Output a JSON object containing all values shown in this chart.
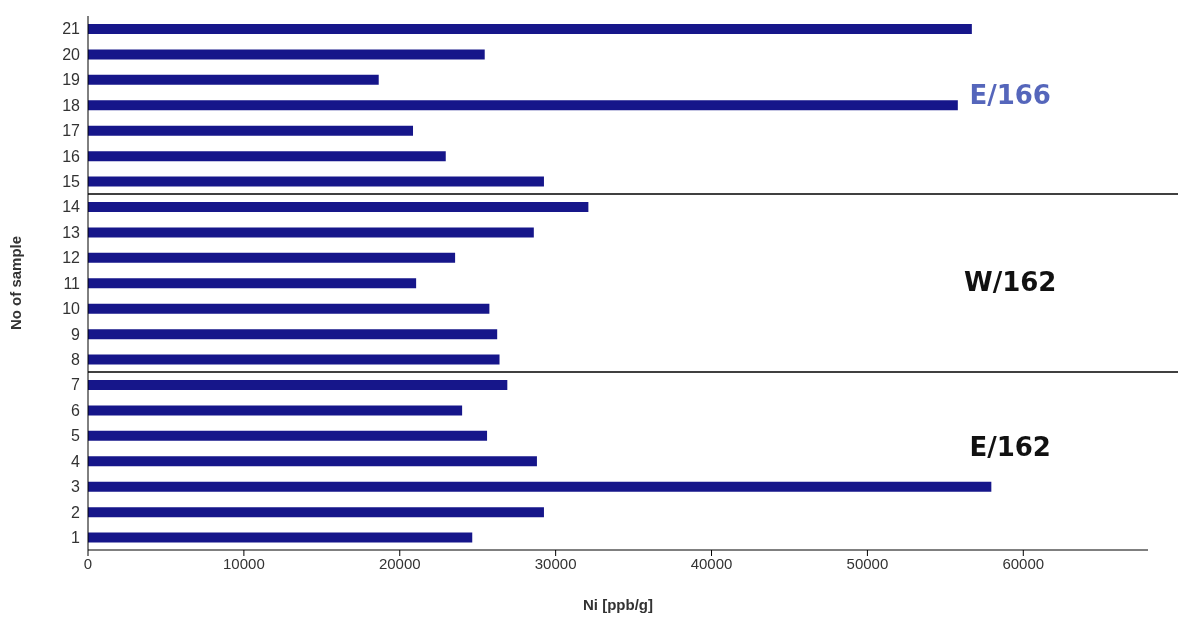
{
  "chart_data": {
    "type": "bar",
    "orientation": "horizontal",
    "xlabel": "Ni [ppb/g]",
    "ylabel": "No of sample",
    "categories": [
      "21",
      "20",
      "19",
      "18",
      "17",
      "16",
      "15",
      "14",
      "13",
      "12",
      "11",
      "10",
      "9",
      "8",
      "7",
      "6",
      "5",
      "4",
      "3",
      "2",
      "1"
    ],
    "values": [
      56700,
      25450,
      18650,
      55800,
      20850,
      22950,
      29250,
      32100,
      28600,
      23550,
      21050,
      25750,
      26250,
      26400,
      26900,
      24000,
      25600,
      28800,
      57950,
      29250,
      24650
    ],
    "color": "#16168a",
    "xlim": [
      0,
      68000
    ],
    "xticks": [
      0,
      10000,
      20000,
      30000,
      40000,
      50000,
      60000
    ],
    "annotations": [
      "E/166",
      "W/162",
      "E/162"
    ]
  }
}
